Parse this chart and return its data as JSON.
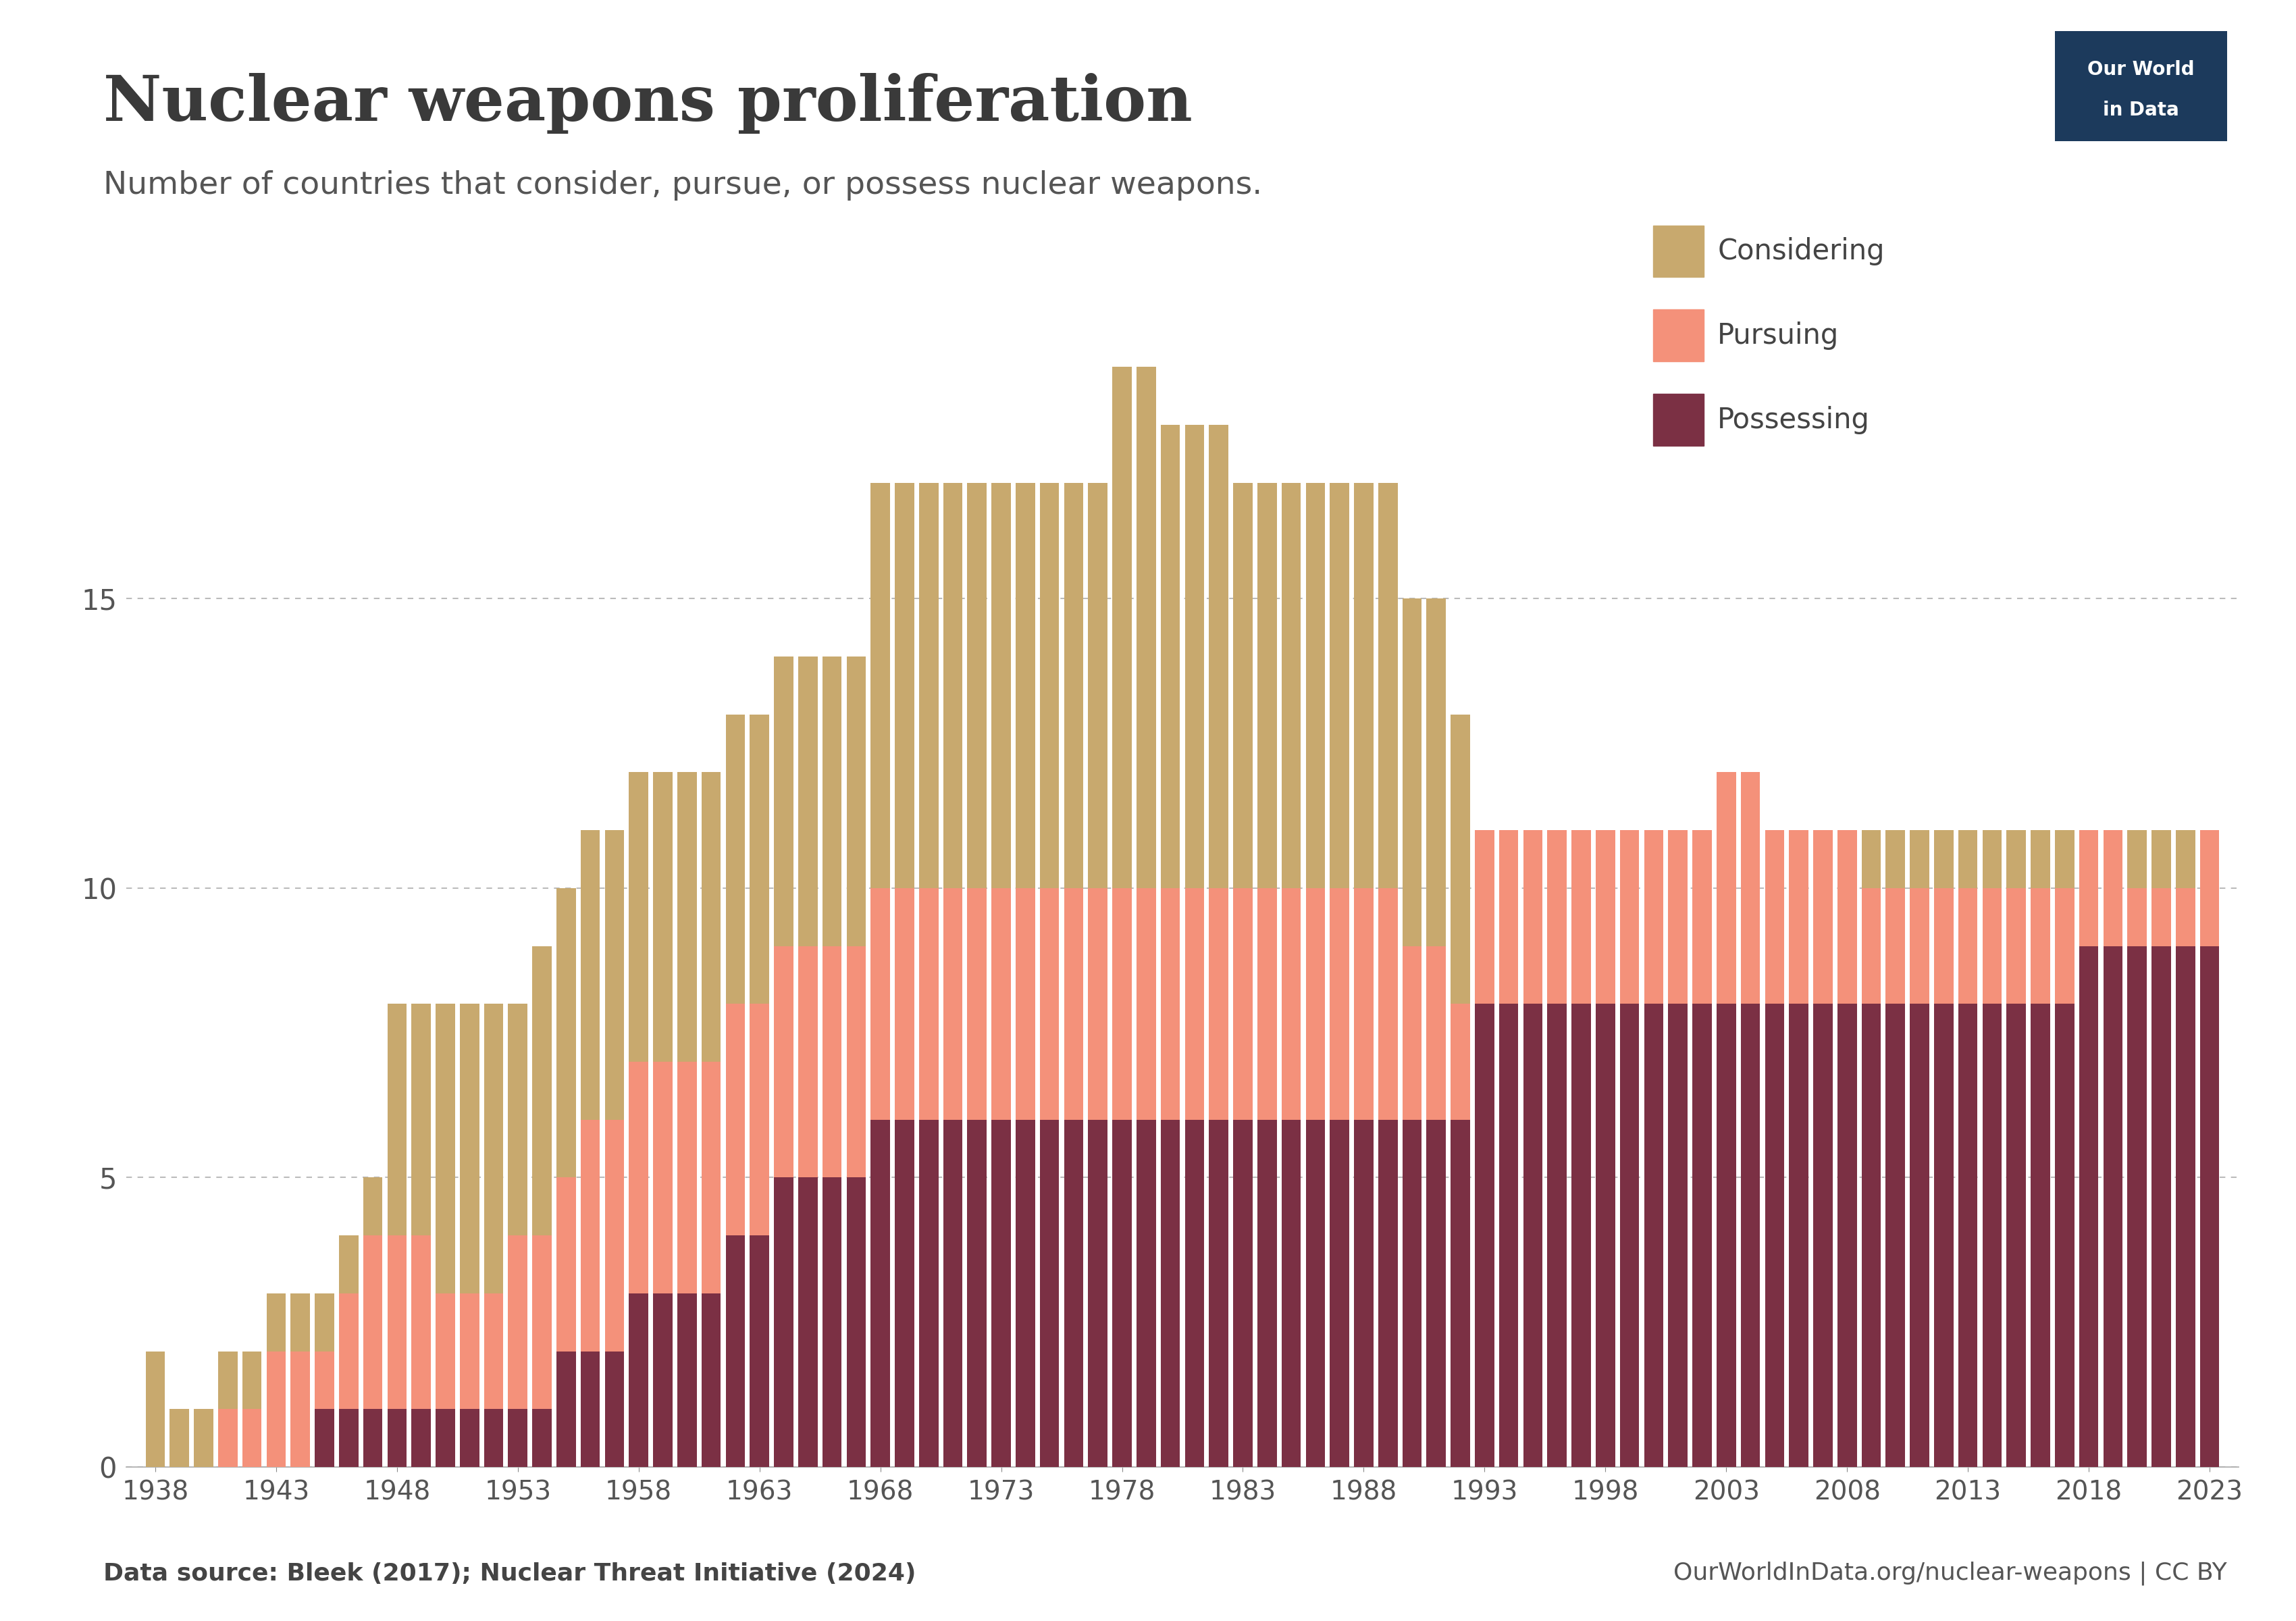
{
  "title": "Nuclear weapons proliferation",
  "subtitle": "Number of countries that consider, pursue, or possess nuclear weapons.",
  "source_left": "Data source: Bleek (2017); Nuclear Threat Initiative (2024)",
  "source_right": "OurWorldInData.org/nuclear-weapons | CC BY",
  "years": [
    1938,
    1939,
    1940,
    1941,
    1942,
    1943,
    1944,
    1945,
    1946,
    1947,
    1948,
    1949,
    1950,
    1951,
    1952,
    1953,
    1954,
    1955,
    1956,
    1957,
    1958,
    1959,
    1960,
    1961,
    1962,
    1963,
    1964,
    1965,
    1966,
    1967,
    1968,
    1969,
    1970,
    1971,
    1972,
    1973,
    1974,
    1975,
    1976,
    1977,
    1978,
    1979,
    1980,
    1981,
    1982,
    1983,
    1984,
    1985,
    1986,
    1987,
    1988,
    1989,
    1990,
    1991,
    1992,
    1993,
    1994,
    1995,
    1996,
    1997,
    1998,
    1999,
    2000,
    2001,
    2002,
    2003,
    2004,
    2005,
    2006,
    2007,
    2008,
    2009,
    2010,
    2011,
    2012,
    2013,
    2014,
    2015,
    2016,
    2017,
    2018,
    2019,
    2020,
    2021,
    2022,
    2023
  ],
  "possessing": [
    0,
    0,
    0,
    0,
    0,
    0,
    0,
    1,
    1,
    1,
    1,
    1,
    1,
    1,
    1,
    1,
    1,
    2,
    2,
    2,
    3,
    3,
    3,
    3,
    4,
    4,
    5,
    5,
    5,
    5,
    6,
    6,
    6,
    6,
    6,
    6,
    6,
    6,
    6,
    6,
    6,
    6,
    6,
    6,
    6,
    6,
    6,
    6,
    6,
    6,
    6,
    6,
    6,
    6,
    6,
    8,
    8,
    8,
    8,
    8,
    8,
    8,
    8,
    8,
    8,
    8,
    8,
    8,
    8,
    8,
    8,
    8,
    8,
    8,
    8,
    8,
    8,
    8,
    8,
    8,
    9,
    9,
    9,
    9,
    9,
    9
  ],
  "pursuing": [
    0,
    0,
    0,
    1,
    1,
    2,
    2,
    1,
    2,
    3,
    3,
    3,
    2,
    2,
    2,
    3,
    3,
    3,
    4,
    4,
    4,
    4,
    4,
    4,
    4,
    4,
    4,
    4,
    4,
    4,
    4,
    4,
    4,
    4,
    4,
    4,
    4,
    4,
    4,
    4,
    4,
    4,
    4,
    4,
    4,
    4,
    4,
    4,
    4,
    4,
    4,
    4,
    3,
    3,
    2,
    3,
    3,
    3,
    3,
    3,
    3,
    3,
    3,
    3,
    3,
    4,
    4,
    3,
    3,
    3,
    3,
    2,
    2,
    2,
    2,
    2,
    2,
    2,
    2,
    2,
    2,
    2,
    1,
    1,
    1,
    2
  ],
  "considering": [
    2,
    1,
    1,
    1,
    1,
    1,
    1,
    1,
    1,
    1,
    4,
    4,
    5,
    5,
    5,
    4,
    5,
    5,
    5,
    5,
    5,
    5,
    5,
    5,
    5,
    5,
    5,
    5,
    5,
    5,
    7,
    7,
    7,
    7,
    7,
    7,
    7,
    7,
    7,
    7,
    9,
    9,
    8,
    8,
    8,
    7,
    7,
    7,
    7,
    7,
    7,
    7,
    6,
    6,
    5,
    0,
    0,
    0,
    0,
    0,
    0,
    0,
    0,
    0,
    0,
    0,
    0,
    0,
    0,
    0,
    0,
    1,
    1,
    1,
    1,
    1,
    1,
    1,
    1,
    1,
    0,
    0,
    1,
    1,
    1,
    0
  ],
  "color_considering": "#C8A96E",
  "color_pursuing": "#F4917A",
  "color_possessing": "#7B3044",
  "background_color": "#FFFFFF",
  "yticks": [
    0,
    5,
    10,
    15
  ],
  "logo_bg": "#1C3A5C",
  "logo_text_line1": "Our World",
  "logo_text_line2": "in Data"
}
